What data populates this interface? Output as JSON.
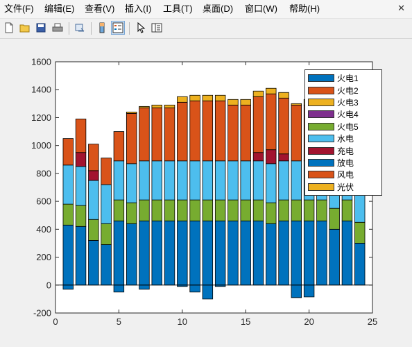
{
  "menubar": {
    "items": [
      "文件(F)",
      "编辑(E)",
      "查看(V)",
      "插入(I)",
      "工具(T)",
      "桌面(D)",
      "窗口(W)",
      "帮助(H)"
    ],
    "close_glyph": "✕"
  },
  "toolbar": {
    "buttons": [
      {
        "icon": "new-file-icon"
      },
      {
        "icon": "open-folder-icon"
      },
      {
        "icon": "save-icon"
      },
      {
        "icon": "print-icon"
      },
      {
        "icon": "link-figure-icon"
      },
      {
        "icon": "insert-colorbar-icon"
      },
      {
        "icon": "insert-legend-icon"
      },
      {
        "icon": "pointer-icon"
      },
      {
        "icon": "property-editor-icon"
      }
    ]
  },
  "colors": {
    "火电1": "#0072bd",
    "火电2": "#d95319",
    "火电3": "#edb120",
    "火电4": "#7e2f8e",
    "火电5": "#77ac30",
    "水电": "#4dbeee",
    "充电": "#a2142f",
    "放电": "#0072bd",
    "风电": "#d95319",
    "光伏": "#edb120"
  },
  "chart_data": {
    "type": "bar",
    "stacked": true,
    "x": [
      1,
      2,
      3,
      4,
      5,
      6,
      7,
      8,
      9,
      10,
      11,
      12,
      13,
      14,
      15,
      16,
      17,
      18,
      19,
      20,
      21,
      22,
      23,
      24
    ],
    "xlim": [
      0,
      25
    ],
    "ylim": [
      -200,
      1600
    ],
    "xticks": [
      0,
      5,
      10,
      15,
      20,
      25
    ],
    "yticks": [
      -200,
      0,
      200,
      400,
      600,
      800,
      1000,
      1200,
      1400,
      1600
    ],
    "legend_position": "top-right",
    "series": [
      {
        "name": "火电1",
        "values": [
          430,
          420,
          320,
          290,
          460,
          440,
          460,
          460,
          460,
          460,
          460,
          460,
          460,
          460,
          460,
          460,
          440,
          460,
          460,
          460,
          460,
          400,
          460,
          300
        ]
      },
      {
        "name": "火电2",
        "values": [
          0,
          0,
          0,
          0,
          0,
          0,
          0,
          0,
          0,
          0,
          0,
          0,
          0,
          0,
          0,
          0,
          0,
          0,
          0,
          0,
          0,
          0,
          0,
          0
        ]
      },
      {
        "name": "火电3",
        "values": [
          0,
          0,
          0,
          0,
          0,
          0,
          0,
          0,
          0,
          0,
          0,
          0,
          0,
          0,
          0,
          0,
          0,
          0,
          0,
          0,
          0,
          0,
          0,
          0
        ]
      },
      {
        "name": "火电4",
        "values": [
          0,
          0,
          0,
          0,
          0,
          0,
          0,
          0,
          0,
          0,
          0,
          0,
          0,
          0,
          0,
          0,
          0,
          0,
          0,
          0,
          0,
          0,
          0,
          0
        ]
      },
      {
        "name": "火电5",
        "values": [
          150,
          150,
          150,
          150,
          150,
          150,
          150,
          150,
          150,
          150,
          150,
          150,
          150,
          150,
          150,
          150,
          150,
          150,
          150,
          150,
          150,
          150,
          150,
          150
        ]
      },
      {
        "name": "水电",
        "values": [
          280,
          280,
          280,
          280,
          280,
          280,
          280,
          280,
          280,
          280,
          280,
          280,
          280,
          280,
          280,
          280,
          280,
          280,
          280,
          280,
          280,
          280,
          280,
          280
        ]
      },
      {
        "name": "充电",
        "values": [
          0,
          100,
          70,
          0,
          0,
          0,
          0,
          0,
          0,
          0,
          0,
          0,
          0,
          0,
          0,
          60,
          100,
          50,
          0,
          0,
          0,
          0,
          0,
          0
        ]
      },
      {
        "name": "放电",
        "values": [
          -30,
          0,
          0,
          0,
          -50,
          0,
          -30,
          0,
          0,
          -10,
          -50,
          -100,
          -10,
          0,
          0,
          0,
          0,
          0,
          -90,
          -85,
          0,
          0,
          0,
          0
        ]
      },
      {
        "name": "风电",
        "values": [
          190,
          240,
          190,
          190,
          210,
          360,
          380,
          380,
          380,
          420,
          430,
          430,
          430,
          400,
          400,
          400,
          400,
          400,
          400,
          400,
          400,
          300,
          350,
          300
        ]
      },
      {
        "name": "光伏",
        "values": [
          0,
          0,
          0,
          0,
          0,
          10,
          10,
          20,
          20,
          40,
          40,
          40,
          40,
          40,
          40,
          40,
          40,
          40,
          10,
          40,
          0,
          0,
          0,
          0
        ]
      }
    ]
  }
}
